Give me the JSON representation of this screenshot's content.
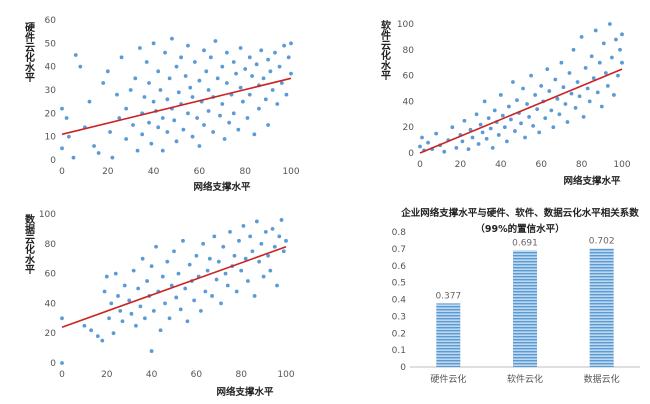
{
  "chart_data": [
    {
      "type": "scatter",
      "xlabel": "网络支撑水平",
      "ylabel": "硬件云化水平",
      "xlim": [
        0,
        100
      ],
      "ylim": [
        0,
        60
      ],
      "xticks": [
        "0",
        "20",
        "40",
        "60",
        "80",
        "100"
      ],
      "yticks": [
        "0",
        "10",
        "20",
        "30",
        "40",
        "50",
        "60"
      ],
      "trendline": [
        [
          0,
          11
        ],
        [
          100,
          35
        ]
      ],
      "point_color": "#5b9bd5",
      "line_color": "#cc2222",
      "points": [
        [
          0,
          22
        ],
        [
          0,
          5
        ],
        [
          2,
          18
        ],
        [
          3,
          10
        ],
        [
          5,
          1
        ],
        [
          6,
          45
        ],
        [
          8,
          40
        ],
        [
          10,
          14
        ],
        [
          12,
          25
        ],
        [
          14,
          6
        ],
        [
          16,
          3
        ],
        [
          18,
          33
        ],
        [
          20,
          38
        ],
        [
          21,
          12
        ],
        [
          22,
          1
        ],
        [
          24,
          28
        ],
        [
          25,
          18
        ],
        [
          26,
          44
        ],
        [
          28,
          9
        ],
        [
          28,
          22
        ],
        [
          30,
          30
        ],
        [
          31,
          15
        ],
        [
          32,
          35
        ],
        [
          33,
          4
        ],
        [
          34,
          48
        ],
        [
          35,
          20
        ],
        [
          35,
          11
        ],
        [
          36,
          27
        ],
        [
          37,
          42
        ],
        [
          38,
          16
        ],
        [
          38,
          33
        ],
        [
          39,
          7
        ],
        [
          40,
          25
        ],
        [
          40,
          50
        ],
        [
          41,
          21
        ],
        [
          42,
          14
        ],
        [
          42,
          38
        ],
        [
          43,
          30
        ],
        [
          44,
          18
        ],
        [
          44,
          4
        ],
        [
          45,
          46
        ],
        [
          46,
          26
        ],
        [
          46,
          12
        ],
        [
          47,
          35
        ],
        [
          48,
          22
        ],
        [
          48,
          52
        ],
        [
          49,
          17
        ],
        [
          50,
          40
        ],
        [
          50,
          8
        ],
        [
          51,
          29
        ],
        [
          52,
          24
        ],
        [
          52,
          44
        ],
        [
          53,
          13
        ],
        [
          54,
          36
        ],
        [
          55,
          20
        ],
        [
          55,
          49
        ],
        [
          56,
          31
        ],
        [
          57,
          10
        ],
        [
          57,
          27
        ],
        [
          58,
          42
        ],
        [
          59,
          18
        ],
        [
          60,
          34
        ],
        [
          60,
          6
        ],
        [
          61,
          25
        ],
        [
          62,
          47
        ],
        [
          62,
          15
        ],
        [
          63,
          38
        ],
        [
          64,
          21
        ],
        [
          64,
          30
        ],
        [
          65,
          44
        ],
        [
          66,
          12
        ],
        [
          66,
          27
        ],
        [
          67,
          51
        ],
        [
          68,
          35
        ],
        [
          69,
          19
        ],
        [
          70,
          40
        ],
        [
          70,
          24
        ],
        [
          71,
          9
        ],
        [
          72,
          33
        ],
        [
          72,
          46
        ],
        [
          73,
          16
        ],
        [
          74,
          28
        ],
        [
          75,
          42
        ],
        [
          75,
          20
        ],
        [
          76,
          37
        ],
        [
          77,
          13
        ],
        [
          78,
          31
        ],
        [
          78,
          48
        ],
        [
          79,
          25
        ],
        [
          80,
          39
        ],
        [
          81,
          18
        ],
        [
          82,
          44
        ],
        [
          82,
          28
        ],
        [
          83,
          36
        ],
        [
          84,
          11
        ],
        [
          85,
          41
        ],
        [
          86,
          32
        ],
        [
          86,
          22
        ],
        [
          87,
          47
        ],
        [
          88,
          35
        ],
        [
          89,
          26
        ],
        [
          90,
          43
        ],
        [
          90,
          15
        ],
        [
          91,
          38
        ],
        [
          92,
          30
        ],
        [
          93,
          46
        ],
        [
          94,
          24
        ],
        [
          95,
          40
        ],
        [
          96,
          33
        ],
        [
          97,
          49
        ],
        [
          98,
          28
        ],
        [
          99,
          44
        ],
        [
          100,
          37
        ],
        [
          100,
          50
        ]
      ]
    },
    {
      "type": "scatter",
      "xlabel": "网络支撑水平",
      "ylabel": "软件云化水平",
      "xlim": [
        0,
        100
      ],
      "ylim": [
        0,
        100
      ],
      "xticks": [
        "0",
        "20",
        "40",
        "60",
        "80",
        "100"
      ],
      "yticks": [
        "0",
        "20",
        "40",
        "60",
        "80",
        "100"
      ],
      "trendline": [
        [
          0,
          0
        ],
        [
          100,
          65
        ]
      ],
      "point_color": "#5b9bd5",
      "line_color": "#cc2222",
      "points": [
        [
          0,
          5
        ],
        [
          1,
          12
        ],
        [
          2,
          2
        ],
        [
          4,
          8
        ],
        [
          6,
          3
        ],
        [
          8,
          15
        ],
        [
          10,
          6
        ],
        [
          12,
          1
        ],
        [
          14,
          10
        ],
        [
          16,
          20
        ],
        [
          18,
          4
        ],
        [
          20,
          14
        ],
        [
          21,
          9
        ],
        [
          22,
          25
        ],
        [
          24,
          3
        ],
        [
          25,
          18
        ],
        [
          26,
          12
        ],
        [
          28,
          30
        ],
        [
          29,
          7
        ],
        [
          30,
          22
        ],
        [
          31,
          16
        ],
        [
          32,
          40
        ],
        [
          33,
          11
        ],
        [
          34,
          27
        ],
        [
          35,
          19
        ],
        [
          36,
          4
        ],
        [
          37,
          33
        ],
        [
          38,
          24
        ],
        [
          39,
          14
        ],
        [
          40,
          45
        ],
        [
          41,
          29
        ],
        [
          42,
          20
        ],
        [
          43,
          9
        ],
        [
          44,
          36
        ],
        [
          45,
          26
        ],
        [
          46,
          55
        ],
        [
          47,
          17
        ],
        [
          48,
          41
        ],
        [
          49,
          31
        ],
        [
          50,
          23
        ],
        [
          51,
          50
        ],
        [
          52,
          12
        ],
        [
          53,
          38
        ],
        [
          54,
          28
        ],
        [
          55,
          60
        ],
        [
          56,
          21
        ],
        [
          57,
          45
        ],
        [
          58,
          34
        ],
        [
          59,
          16
        ],
        [
          60,
          52
        ],
        [
          61,
          40
        ],
        [
          62,
          27
        ],
        [
          63,
          65
        ],
        [
          64,
          48
        ],
        [
          65,
          33
        ],
        [
          66,
          20
        ],
        [
          67,
          57
        ],
        [
          68,
          42
        ],
        [
          69,
          30
        ],
        [
          70,
          70
        ],
        [
          71,
          51
        ],
        [
          72,
          38
        ],
        [
          73,
          24
        ],
        [
          74,
          62
        ],
        [
          75,
          46
        ],
        [
          76,
          80
        ],
        [
          77,
          35
        ],
        [
          78,
          55
        ],
        [
          79,
          44
        ],
        [
          80,
          90
        ],
        [
          81,
          28
        ],
        [
          82,
          66
        ],
        [
          83,
          50
        ],
        [
          84,
          40
        ],
        [
          85,
          75
        ],
        [
          86,
          58
        ],
        [
          87,
          95
        ],
        [
          88,
          47
        ],
        [
          89,
          70
        ],
        [
          90,
          36
        ],
        [
          91,
          85
        ],
        [
          92,
          62
        ],
        [
          93,
          52
        ],
        [
          94,
          100
        ],
        [
          95,
          74
        ],
        [
          96,
          45
        ],
        [
          97,
          88
        ],
        [
          98,
          60
        ],
        [
          99,
          80
        ],
        [
          100,
          70
        ],
        [
          100,
          92
        ]
      ]
    },
    {
      "type": "scatter",
      "xlabel": "网络支撑水平",
      "ylabel": "数据云化水平",
      "xlim": [
        0,
        100
      ],
      "ylim": [
        0,
        100
      ],
      "xticks": [
        "0",
        "20",
        "40",
        "60",
        "80",
        "100"
      ],
      "yticks": [
        "0",
        "20",
        "40",
        "60",
        "80",
        "100"
      ],
      "trendline": [
        [
          0,
          24
        ],
        [
          100,
          78
        ]
      ],
      "point_color": "#5b9bd5",
      "line_color": "#cc2222",
      "points": [
        [
          0,
          0
        ],
        [
          0,
          30
        ],
        [
          10,
          25
        ],
        [
          13,
          22
        ],
        [
          16,
          18
        ],
        [
          18,
          15
        ],
        [
          19,
          48
        ],
        [
          20,
          58
        ],
        [
          21,
          30
        ],
        [
          22,
          40
        ],
        [
          23,
          20
        ],
        [
          24,
          60
        ],
        [
          25,
          45
        ],
        [
          26,
          35
        ],
        [
          27,
          28
        ],
        [
          28,
          52
        ],
        [
          30,
          42
        ],
        [
          31,
          33
        ],
        [
          32,
          62
        ],
        [
          33,
          25
        ],
        [
          34,
          50
        ],
        [
          35,
          38
        ],
        [
          36,
          70
        ],
        [
          37,
          30
        ],
        [
          38,
          55
        ],
        [
          39,
          45
        ],
        [
          40,
          8
        ],
        [
          40,
          65
        ],
        [
          41,
          35
        ],
        [
          42,
          78
        ],
        [
          43,
          48
        ],
        [
          44,
          22
        ],
        [
          45,
          58
        ],
        [
          46,
          40
        ],
        [
          47,
          68
        ],
        [
          48,
          30
        ],
        [
          49,
          52
        ],
        [
          50,
          75
        ],
        [
          51,
          44
        ],
        [
          52,
          60
        ],
        [
          53,
          36
        ],
        [
          54,
          82
        ],
        [
          55,
          50
        ],
        [
          56,
          28
        ],
        [
          57,
          66
        ],
        [
          58,
          55
        ],
        [
          59,
          42
        ],
        [
          60,
          72
        ],
        [
          61,
          58
        ],
        [
          62,
          35
        ],
        [
          63,
          80
        ],
        [
          64,
          48
        ],
        [
          65,
          62
        ],
        [
          66,
          70
        ],
        [
          67,
          45
        ],
        [
          68,
          85
        ],
        [
          69,
          56
        ],
        [
          70,
          68
        ],
        [
          71,
          40
        ],
        [
          72,
          78
        ],
        [
          73,
          60
        ],
        [
          74,
          52
        ],
        [
          75,
          88
        ],
        [
          76,
          65
        ],
        [
          77,
          72
        ],
        [
          78,
          48
        ],
        [
          79,
          82
        ],
        [
          80,
          62
        ],
        [
          81,
          92
        ],
        [
          82,
          70
        ],
        [
          83,
          55
        ],
        [
          84,
          85
        ],
        [
          85,
          75
        ],
        [
          86,
          45
        ],
        [
          87,
          95
        ],
        [
          88,
          68
        ],
        [
          89,
          80
        ],
        [
          90,
          58
        ],
        [
          91,
          88
        ],
        [
          92,
          72
        ],
        [
          93,
          62
        ],
        [
          94,
          90
        ],
        [
          95,
          78
        ],
        [
          96,
          52
        ],
        [
          97,
          85
        ],
        [
          98,
          96
        ],
        [
          99,
          75
        ],
        [
          100,
          82
        ]
      ]
    },
    {
      "type": "bar",
      "title": "企业网络支撑水平与硬件、软件、数据云化水平相关系数",
      "subtitle": "（99%的置信水平）",
      "categories": [
        "硬件云化",
        "软件云化",
        "数据云化"
      ],
      "values": [
        0.377,
        0.691,
        0.702
      ],
      "value_labels": [
        "0.377",
        "0.691",
        "0.702"
      ],
      "ylim": [
        0,
        0.8
      ],
      "yticks": [
        "0",
        "0.1",
        "0.2",
        "0.3",
        "0.4",
        "0.5",
        "0.6",
        "0.7",
        "0.8"
      ],
      "bar_color": "#9dc3e6",
      "stripe_color": "#5b9bd5"
    }
  ]
}
